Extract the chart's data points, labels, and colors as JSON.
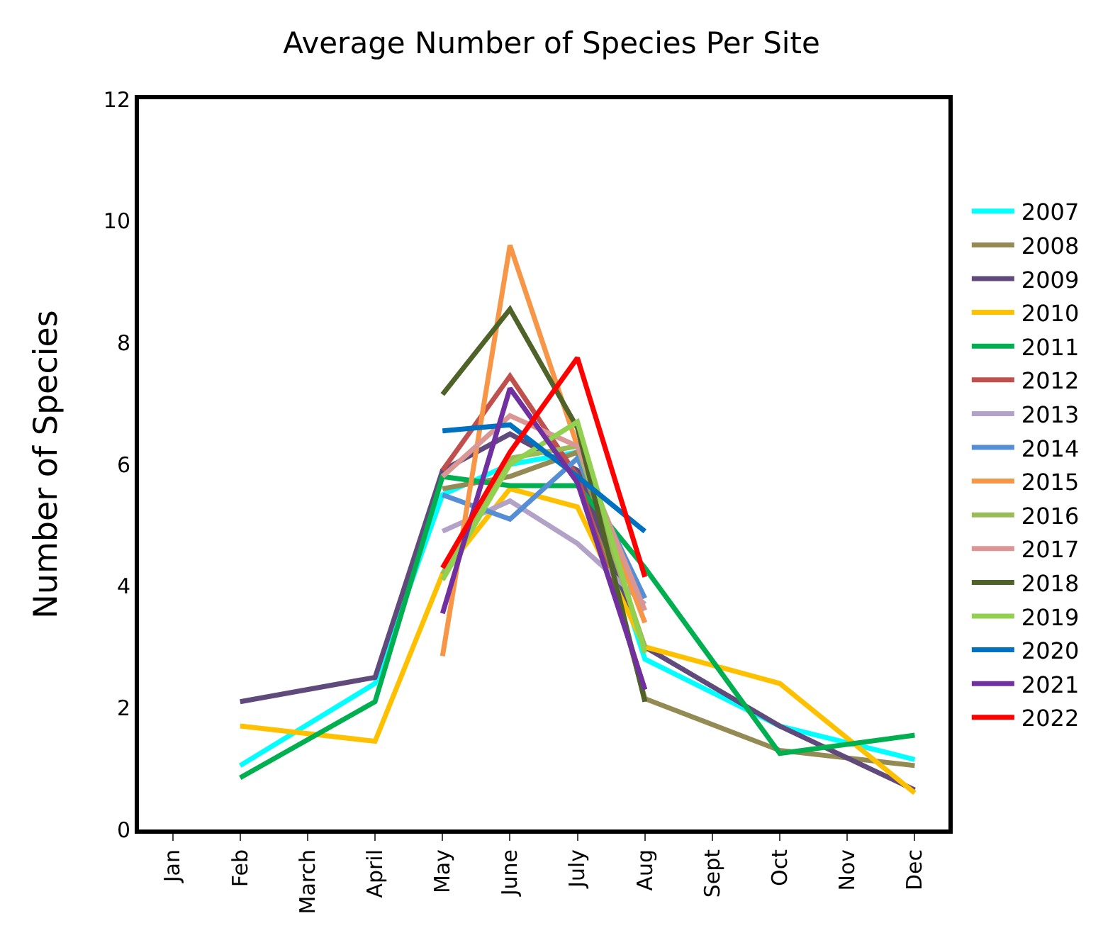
{
  "chart_data": {
    "type": "line",
    "title": "Average Number of Species Per Site",
    "ylabel": "Number of Species",
    "categories": [
      "Jan",
      "Feb",
      "March",
      "April",
      "May",
      "June",
      "July",
      "Aug",
      "Sept",
      "Oct",
      "Nov",
      "Dec"
    ],
    "ylim": [
      0,
      12
    ],
    "yticks": [
      0,
      2,
      4,
      6,
      8,
      10,
      12
    ],
    "grid": false,
    "legend": "right",
    "marker": "none",
    "line_style": "solid",
    "series": [
      {
        "name": "2007",
        "color": "#00ffff",
        "values": [
          null,
          1.05,
          null,
          2.4,
          5.5,
          6.0,
          6.2,
          2.8,
          null,
          1.7,
          null,
          1.15
        ]
      },
      {
        "name": "2008",
        "color": "#948a54",
        "values": [
          null,
          null,
          null,
          null,
          5.6,
          5.8,
          6.2,
          2.15,
          null,
          1.3,
          null,
          1.05
        ]
      },
      {
        "name": "2009",
        "color": "#604a7b",
        "values": [
          null,
          2.1,
          null,
          2.5,
          5.9,
          6.5,
          5.9,
          3.0,
          null,
          1.7,
          null,
          0.65
        ]
      },
      {
        "name": "2010",
        "color": "#ffc000",
        "values": [
          null,
          1.7,
          null,
          1.45,
          4.2,
          5.6,
          5.3,
          3.0,
          null,
          2.4,
          null,
          0.6
        ]
      },
      {
        "name": "2011",
        "color": "#00b050",
        "values": [
          null,
          0.85,
          null,
          2.1,
          5.8,
          5.65,
          5.65,
          4.3,
          null,
          1.25,
          null,
          1.55
        ]
      },
      {
        "name": "2012",
        "color": "#c0504d",
        "values": [
          null,
          null,
          null,
          null,
          5.9,
          7.45,
          5.8,
          2.3,
          null,
          null,
          null,
          null
        ]
      },
      {
        "name": "2013",
        "color": "#b3a2c7",
        "values": [
          null,
          null,
          null,
          null,
          4.9,
          5.4,
          4.7,
          3.7,
          null,
          null,
          null,
          null
        ]
      },
      {
        "name": "2014",
        "color": "#558ed5",
        "values": [
          null,
          null,
          null,
          null,
          5.5,
          5.1,
          6.1,
          3.8,
          null,
          null,
          null,
          null
        ]
      },
      {
        "name": "2015",
        "color": "#f79646",
        "values": [
          null,
          null,
          null,
          null,
          2.85,
          9.6,
          6.3,
          3.4,
          null,
          null,
          null,
          null
        ]
      },
      {
        "name": "2016",
        "color": "#9bbb59",
        "values": [
          null,
          null,
          null,
          null,
          4.2,
          6.1,
          6.3,
          3.0,
          null,
          null,
          null,
          null
        ]
      },
      {
        "name": "2017",
        "color": "#d99694",
        "values": [
          null,
          null,
          null,
          null,
          5.8,
          6.8,
          6.3,
          3.6,
          null,
          null,
          null,
          null
        ]
      },
      {
        "name": "2018",
        "color": "#4f6228",
        "values": [
          null,
          null,
          null,
          null,
          7.15,
          8.55,
          6.6,
          2.1,
          null,
          null,
          null,
          null
        ]
      },
      {
        "name": "2019",
        "color": "#92d050",
        "values": [
          null,
          null,
          null,
          null,
          4.1,
          6.0,
          6.7,
          2.9,
          null,
          null,
          null,
          null
        ]
      },
      {
        "name": "2020",
        "color": "#0070c0",
        "values": [
          null,
          null,
          null,
          null,
          6.55,
          6.65,
          5.8,
          4.9,
          null,
          null,
          null,
          null
        ]
      },
      {
        "name": "2021",
        "color": "#7030a0",
        "values": [
          null,
          null,
          null,
          null,
          3.55,
          7.25,
          5.7,
          2.3,
          null,
          null,
          null,
          null
        ]
      },
      {
        "name": "2022",
        "color": "#ff0000",
        "values": [
          null,
          null,
          null,
          null,
          4.3,
          6.2,
          7.75,
          4.15,
          null,
          null,
          null,
          null
        ]
      }
    ]
  }
}
